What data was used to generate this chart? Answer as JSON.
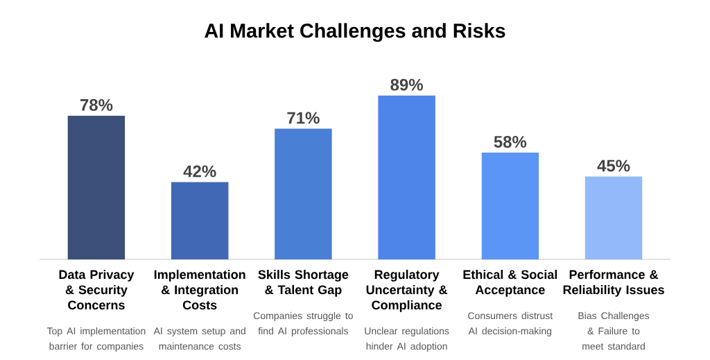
{
  "chart_data": {
    "type": "bar",
    "title": "AI Market Challenges and Risks",
    "categories": [
      "Data Privacy & Security Concerns",
      "Implementation & Integration Costs",
      "Skills Shortage & Talent Gap",
      "Regulatory Uncertainty & Compliance",
      "Ethical & Social Acceptance",
      "Performance & Reliability Issues"
    ],
    "values": [
      78,
      42,
      71,
      89,
      58,
      45
    ],
    "value_labels": [
      "78%",
      "42%",
      "71%",
      "89%",
      "58%",
      "45%"
    ],
    "colors": [
      "#3b4f78",
      "#4068b5",
      "#4a7fd6",
      "#4d86e8",
      "#5b95f5",
      "#93b9fb"
    ],
    "annotations": [
      "Top AI implementation barrier for companies",
      "AI system setup and maintenance costs",
      "Companies struggle to find AI professionals",
      "Unclear regulations hinder AI adoption",
      "Consumers distrust AI decision-making",
      "Bias Challenges & Failure to meet standard"
    ]
  }
}
